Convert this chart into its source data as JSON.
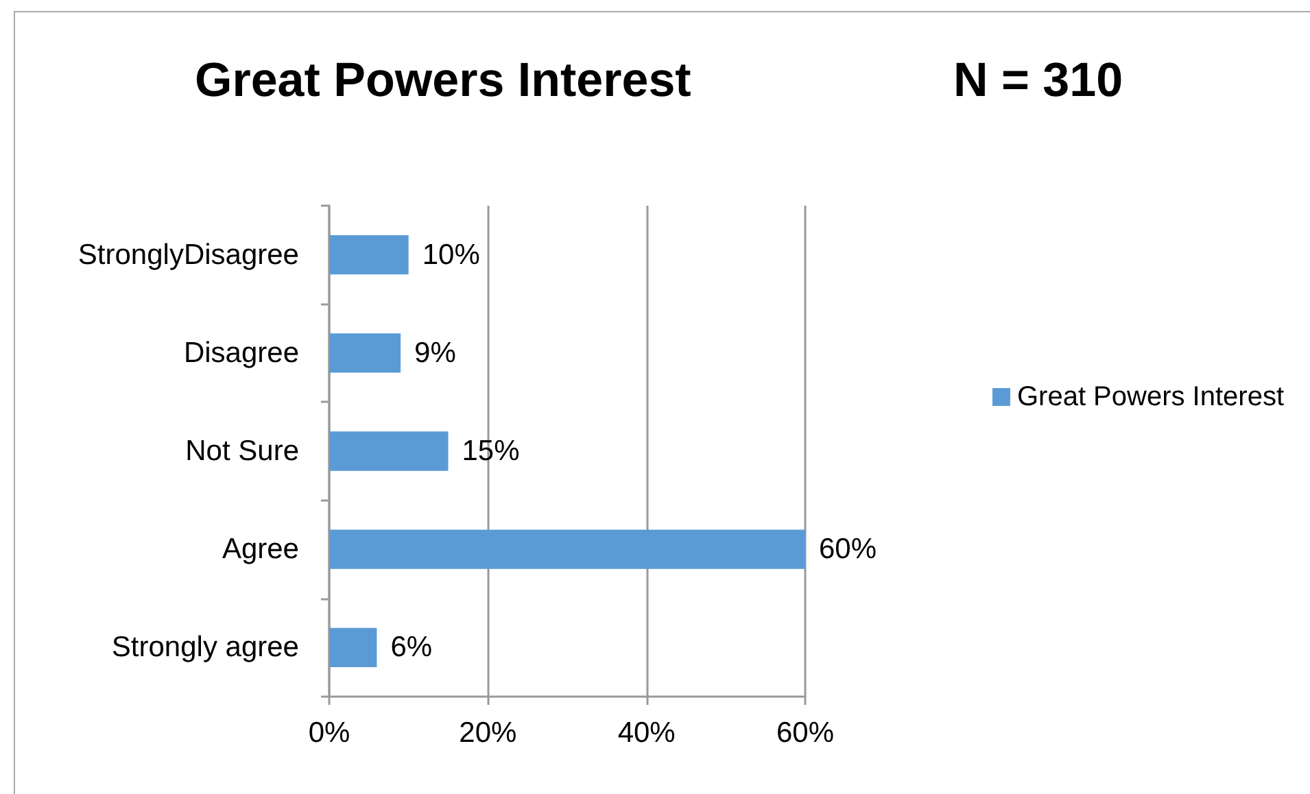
{
  "chart_data": {
    "type": "bar",
    "orientation": "horizontal",
    "title": "Great Powers Interest",
    "subtitle": "N = 310",
    "categories": [
      "StronglyDisagree",
      "Disagree",
      "Not Sure",
      "Agree",
      "Strongly agree"
    ],
    "series": [
      {
        "name": "Great Powers Interest",
        "color": "#5b9bd5",
        "values": [
          10,
          9,
          15,
          60,
          6
        ],
        "value_labels": [
          "10%",
          "9%",
          "15%",
          "60%",
          "6%"
        ]
      }
    ],
    "xlim": [
      0,
      60
    ],
    "xticks": [
      {
        "value": 0,
        "label": "0%"
      },
      {
        "value": 20,
        "label": "20%"
      },
      {
        "value": 40,
        "label": "40%"
      },
      {
        "value": 60,
        "label": "60%"
      }
    ],
    "grid": "x",
    "legend": "right"
  }
}
